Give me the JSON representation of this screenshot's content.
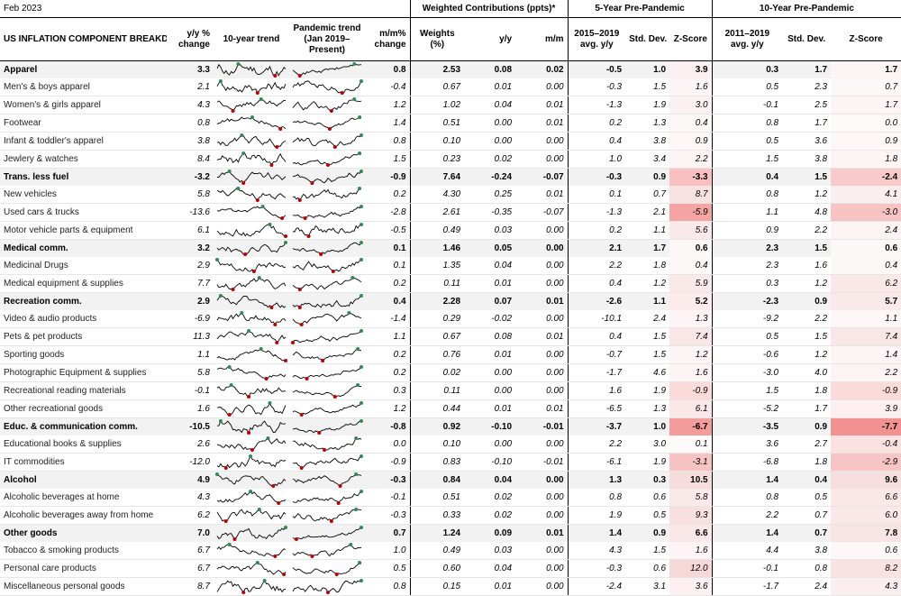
{
  "header": {
    "date": "Feb 2023",
    "weighted_title": "Weighted Contributions (ppts)*",
    "pre5_title": "5-Year Pre-Pandemic",
    "pre10_title": "10-Year Pre-Pandemic"
  },
  "columns": {
    "name": "US INFLATION COMPONENT BREAKDOWN",
    "yy": "y/y % change",
    "trend10": "10-year trend",
    "pandemic": "Pandemic trend (Jan 2019–Present)",
    "mm": "m/m% change",
    "weights": "Weights (%)",
    "wyy": "y/y",
    "wmm": "m/m",
    "avg5": "2015–2019 avg. y/y",
    "sd5": "Std. Dev.",
    "z5": "Z-Score",
    "avg10": "2011–2019 avg. y/y",
    "sd10": "Std. Dev.",
    "z10": "Z-Score"
  },
  "rows": [
    {
      "name": "Apparel",
      "group": true,
      "yy": "3.3",
      "mm": "0.8",
      "w": "2.53",
      "wyy": "0.08",
      "wmm": "0.02",
      "a5": "-0.5",
      "s5": "1.0",
      "z5": "3.9",
      "a10": "0.3",
      "s10": "1.7",
      "z10": "1.7"
    },
    {
      "name": "Men's & boys apparel",
      "yy": "2.1",
      "mm": "-0.4",
      "w": "0.67",
      "wyy": "0.01",
      "wmm": "0.00",
      "a5": "-0.3",
      "s5": "1.5",
      "z5": "1.6",
      "a10": "0.5",
      "s10": "2.3",
      "z10": "0.7"
    },
    {
      "name": "Women's & girls apparel",
      "yy": "4.3",
      "mm": "1.2",
      "w": "1.02",
      "wyy": "0.04",
      "wmm": "0.01",
      "a5": "-1.3",
      "s5": "1.9",
      "z5": "3.0",
      "a10": "-0.1",
      "s10": "2.5",
      "z10": "1.7"
    },
    {
      "name": "Footwear",
      "yy": "0.8",
      "mm": "1.4",
      "w": "0.51",
      "wyy": "0.00",
      "wmm": "0.01",
      "a5": "0.2",
      "s5": "1.3",
      "z5": "0.4",
      "a10": "0.8",
      "s10": "1.7",
      "z10": "0.0"
    },
    {
      "name": "Infant & toddler's apparel",
      "yy": "3.8",
      "mm": "0.8",
      "w": "0.10",
      "wyy": "0.00",
      "wmm": "0.00",
      "a5": "0.4",
      "s5": "3.8",
      "z5": "0.9",
      "a10": "0.5",
      "s10": "3.6",
      "z10": "0.9"
    },
    {
      "name": "Jewlery & watches",
      "yy": "8.4",
      "mm": "1.5",
      "w": "0.23",
      "wyy": "0.02",
      "wmm": "0.00",
      "a5": "1.0",
      "s5": "3.4",
      "z5": "2.2",
      "a10": "1.5",
      "s10": "3.8",
      "z10": "1.8"
    },
    {
      "name": "Trans. less fuel",
      "group": true,
      "yy": "-3.2",
      "mm": "-0.9",
      "w": "7.64",
      "wyy": "-0.24",
      "wmm": "-0.07",
      "a5": "-0.3",
      "s5": "0.9",
      "z5": "-3.3",
      "a10": "0.4",
      "s10": "1.5",
      "z10": "-2.4"
    },
    {
      "name": "New vehicles",
      "yy": "5.8",
      "mm": "0.2",
      "w": "4.30",
      "wyy": "0.25",
      "wmm": "0.01",
      "a5": "0.1",
      "s5": "0.7",
      "z5": "8.7",
      "a10": "0.8",
      "s10": "1.2",
      "z10": "4.1"
    },
    {
      "name": "Used cars & trucks",
      "yy": "-13.6",
      "mm": "-2.8",
      "w": "2.61",
      "wyy": "-0.35",
      "wmm": "-0.07",
      "a5": "-1.3",
      "s5": "2.1",
      "z5": "-5.9",
      "a10": "1.1",
      "s10": "4.8",
      "z10": "-3.0"
    },
    {
      "name": "Motor vehicle parts & equipment",
      "yy": "6.1",
      "mm": "-0.5",
      "w": "0.49",
      "wyy": "0.03",
      "wmm": "0.00",
      "a5": "0.2",
      "s5": "1.1",
      "z5": "5.6",
      "a10": "0.9",
      "s10": "2.2",
      "z10": "2.4"
    },
    {
      "name": "Medical comm.",
      "group": true,
      "yy": "3.2",
      "mm": "0.1",
      "w": "1.46",
      "wyy": "0.05",
      "wmm": "0.00",
      "a5": "2.1",
      "s5": "1.7",
      "z5": "0.6",
      "a10": "2.3",
      "s10": "1.5",
      "z10": "0.6"
    },
    {
      "name": "Medicinal Drugs",
      "yy": "2.9",
      "mm": "0.1",
      "w": "1.35",
      "wyy": "0.04",
      "wmm": "0.00",
      "a5": "2.2",
      "s5": "1.8",
      "z5": "0.4",
      "a10": "2.3",
      "s10": "1.6",
      "z10": "0.4"
    },
    {
      "name": "Medical equipment & supplies",
      "yy": "7.7",
      "mm": "0.2",
      "w": "0.11",
      "wyy": "0.01",
      "wmm": "0.00",
      "a5": "0.4",
      "s5": "1.2",
      "z5": "5.9",
      "a10": "0.3",
      "s10": "1.2",
      "z10": "6.2"
    },
    {
      "name": "Recreation comm.",
      "group": true,
      "yy": "2.9",
      "mm": "0.4",
      "w": "2.28",
      "wyy": "0.07",
      "wmm": "0.01",
      "a5": "-2.6",
      "s5": "1.1",
      "z5": "5.2",
      "a10": "-2.3",
      "s10": "0.9",
      "z10": "5.7"
    },
    {
      "name": "Video & audio products",
      "yy": "-6.9",
      "mm": "-1.4",
      "w": "0.29",
      "wyy": "-0.02",
      "wmm": "0.00",
      "a5": "-10.1",
      "s5": "2.4",
      "z5": "1.3",
      "a10": "-9.2",
      "s10": "2.2",
      "z10": "1.1"
    },
    {
      "name": "Pets & pet products",
      "yy": "11.3",
      "mm": "1.1",
      "w": "0.67",
      "wyy": "0.08",
      "wmm": "0.01",
      "a5": "0.4",
      "s5": "1.5",
      "z5": "7.4",
      "a10": "0.5",
      "s10": "1.5",
      "z10": "7.4"
    },
    {
      "name": "Sporting goods",
      "yy": "1.1",
      "mm": "0.2",
      "w": "0.76",
      "wyy": "0.01",
      "wmm": "0.00",
      "a5": "-0.7",
      "s5": "1.5",
      "z5": "1.2",
      "a10": "-0.6",
      "s10": "1.2",
      "z10": "1.4"
    },
    {
      "name": "Photographic Equipment & supplies",
      "yy": "5.8",
      "mm": "0.2",
      "w": "0.02",
      "wyy": "0.00",
      "wmm": "0.00",
      "a5": "-1.7",
      "s5": "4.6",
      "z5": "1.6",
      "a10": "-3.0",
      "s10": "4.0",
      "z10": "2.2"
    },
    {
      "name": "Recreational reading materials",
      "yy": "-0.1",
      "mm": "0.3",
      "w": "0.11",
      "wyy": "0.00",
      "wmm": "0.00",
      "a5": "1.6",
      "s5": "1.9",
      "z5": "-0.9",
      "a10": "1.5",
      "s10": "1.8",
      "z10": "-0.9"
    },
    {
      "name": "Other recreational goods",
      "yy": "1.6",
      "mm": "1.2",
      "w": "0.44",
      "wyy": "0.01",
      "wmm": "0.01",
      "a5": "-6.5",
      "s5": "1.3",
      "z5": "6.1",
      "a10": "-5.2",
      "s10": "1.7",
      "z10": "3.9"
    },
    {
      "name": "Educ. & communication comm.",
      "group": true,
      "yy": "-10.5",
      "mm": "-0.8",
      "w": "0.92",
      "wyy": "-0.10",
      "wmm": "-0.01",
      "a5": "-3.7",
      "s5": "1.0",
      "z5": "-6.7",
      "a10": "-3.5",
      "s10": "0.9",
      "z10": "-7.7"
    },
    {
      "name": "Educational books & supplies",
      "yy": "2.6",
      "mm": "0.0",
      "w": "0.10",
      "wyy": "0.00",
      "wmm": "0.00",
      "a5": "2.2",
      "s5": "3.0",
      "z5": "0.1",
      "a10": "3.6",
      "s10": "2.7",
      "z10": "-0.4"
    },
    {
      "name": "IT commodities",
      "yy": "-12.0",
      "mm": "-0.9",
      "w": "0.83",
      "wyy": "-0.10",
      "wmm": "-0.01",
      "a5": "-6.1",
      "s5": "1.9",
      "z5": "-3.1",
      "a10": "-6.8",
      "s10": "1.8",
      "z10": "-2.9"
    },
    {
      "name": "Alcohol",
      "group": true,
      "yy": "4.9",
      "mm": "-0.3",
      "w": "0.84",
      "wyy": "0.04",
      "wmm": "0.00",
      "a5": "1.3",
      "s5": "0.3",
      "z5": "10.5",
      "a10": "1.4",
      "s10": "0.4",
      "z10": "9.6"
    },
    {
      "name": "Alcoholic beverages at home",
      "yy": "4.3",
      "mm": "-0.1",
      "w": "0.51",
      "wyy": "0.02",
      "wmm": "0.00",
      "a5": "0.8",
      "s5": "0.6",
      "z5": "5.8",
      "a10": "0.8",
      "s10": "0.5",
      "z10": "6.6"
    },
    {
      "name": "Alcoholic beverages away from home",
      "yy": "6.2",
      "mm": "-0.3",
      "w": "0.33",
      "wyy": "0.02",
      "wmm": "0.00",
      "a5": "1.9",
      "s5": "0.5",
      "z5": "9.3",
      "a10": "2.2",
      "s10": "0.7",
      "z10": "6.0"
    },
    {
      "name": "Other goods",
      "group": true,
      "yy": "7.0",
      "mm": "0.7",
      "w": "1.24",
      "wyy": "0.09",
      "wmm": "0.01",
      "a5": "1.4",
      "s5": "0.9",
      "z5": "6.6",
      "a10": "1.4",
      "s10": "0.7",
      "z10": "7.8"
    },
    {
      "name": "Tobacco & smoking products",
      "yy": "6.7",
      "mm": "1.0",
      "w": "0.49",
      "wyy": "0.03",
      "wmm": "0.00",
      "a5": "4.3",
      "s5": "1.5",
      "z5": "1.6",
      "a10": "4.4",
      "s10": "3.8",
      "z10": "0.6"
    },
    {
      "name": "Personal care products",
      "yy": "6.7",
      "mm": "0.5",
      "w": "0.60",
      "wyy": "0.04",
      "wmm": "0.00",
      "a5": "-0.3",
      "s5": "0.6",
      "z5": "12.0",
      "a10": "-0.1",
      "s10": "0.8",
      "z10": "8.2"
    },
    {
      "name": "Miscellaneous personal goods",
      "yy": "8.7",
      "mm": "0.8",
      "w": "0.15",
      "wyy": "0.01",
      "wmm": "0.00",
      "a5": "-2.4",
      "s5": "3.1",
      "z5": "3.6",
      "a10": "-1.7",
      "s10": "2.4",
      "z10": "4.3"
    }
  ],
  "colors": {
    "group_bg": "#f2f2f2",
    "spark_line": "#000000",
    "spark_low": "#c00000",
    "spark_high": "#2e8b57",
    "heat_pos": "#d8ecd8",
    "heat_neg": "#f4b0b0"
  }
}
